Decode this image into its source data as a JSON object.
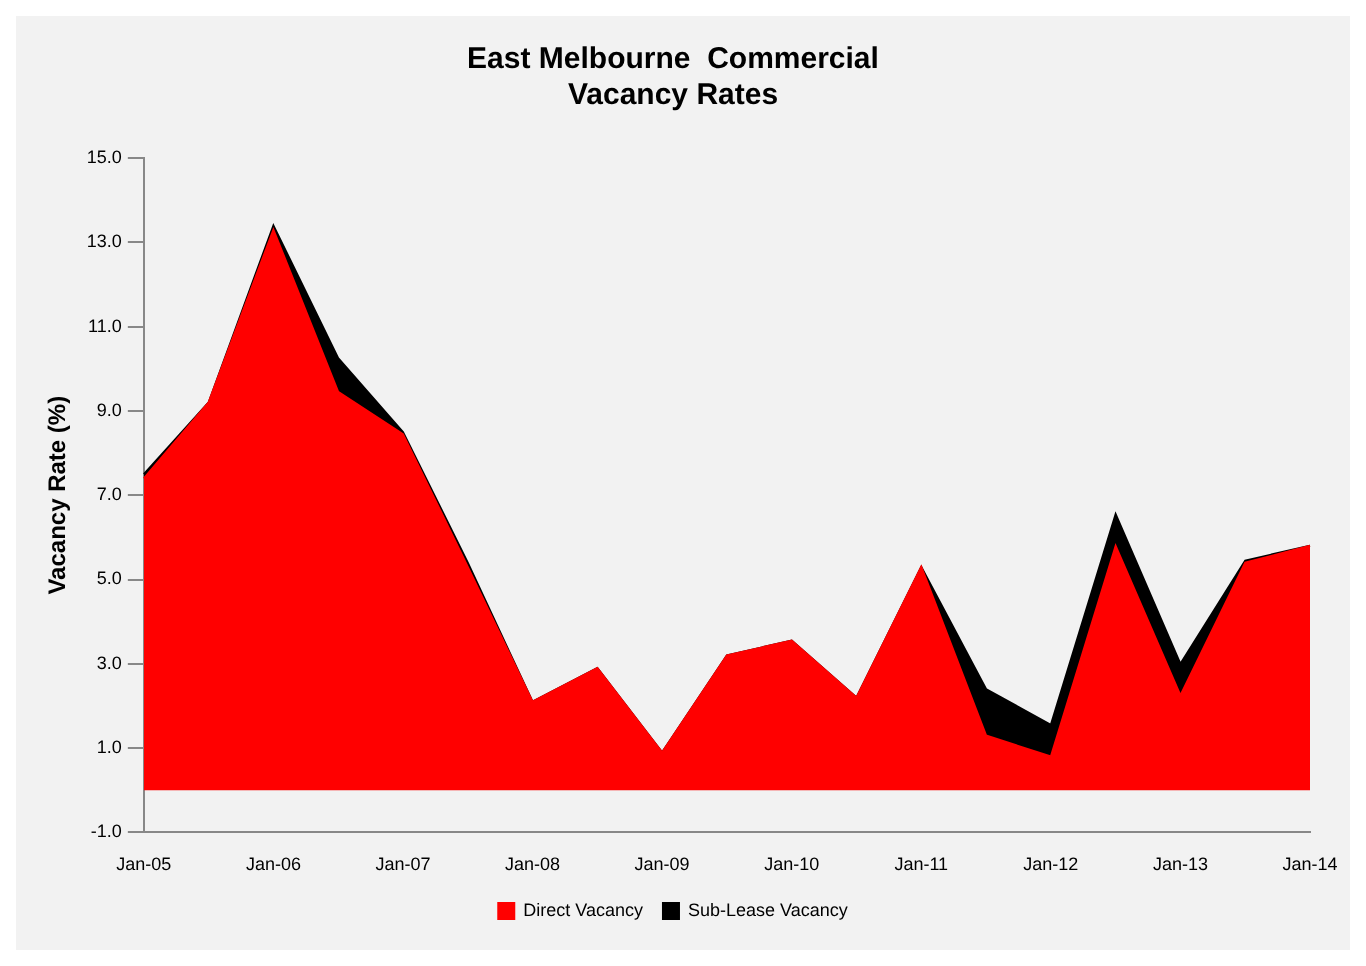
{
  "chart_data": {
    "type": "area",
    "title": "East Melbourne  Commercial\nVacancy Rates",
    "ylabel": "Vacancy Rate (%)",
    "categories": [
      "Jan-05",
      null,
      "Jan-06",
      null,
      "Jan-07",
      null,
      "Jan-08",
      null,
      "Jan-09",
      null,
      "Jan-10",
      null,
      "Jan-11",
      null,
      "Jan-12",
      null,
      "Jan-13",
      null,
      "Jan-14"
    ],
    "stacked": true,
    "series": [
      {
        "name": "Direct Vacancy",
        "color": "#ff0000",
        "values": [
          7.4,
          9.2,
          13.3,
          9.45,
          8.45,
          5.3,
          2.1,
          2.9,
          0.9,
          3.2,
          3.55,
          2.2,
          5.3,
          1.3,
          0.8,
          5.8,
          2.25,
          5.4,
          5.8
        ]
      },
      {
        "name": "Sub-Lease Vacancy",
        "color": "#000000",
        "values": [
          0.1,
          0,
          0.1,
          0.8,
          0.05,
          0.1,
          0,
          0,
          0,
          0,
          0,
          0,
          0,
          1.1,
          0.75,
          0.75,
          0.75,
          0.05,
          0
        ]
      }
    ],
    "ylim": [
      -1,
      15
    ],
    "yticks": [
      {
        "value": -1,
        "label": "-1.0"
      },
      {
        "value": 1,
        "label": "1.0"
      },
      {
        "value": 3,
        "label": "3.0"
      },
      {
        "value": 5,
        "label": "5.0"
      },
      {
        "value": 7,
        "label": "7.0"
      },
      {
        "value": 9,
        "label": "9.0"
      },
      {
        "value": 11,
        "label": "11.0"
      },
      {
        "value": 13,
        "label": "13.0"
      },
      {
        "value": 15,
        "label": "15.0"
      }
    ],
    "grid": false,
    "legend": "bottom"
  }
}
